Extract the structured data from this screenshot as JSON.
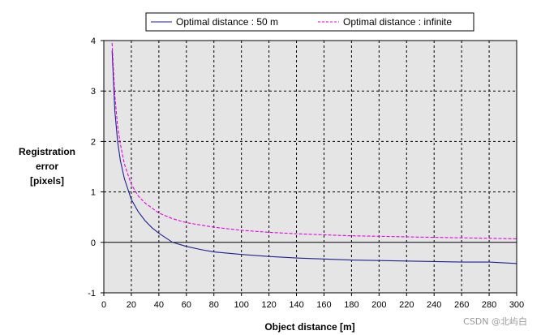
{
  "chart_data": {
    "type": "line",
    "title": "",
    "xlabel": "Object distance [m]",
    "ylabel_lines": [
      "Registration",
      "error",
      "[pixels]"
    ],
    "xlim": [
      0,
      300
    ],
    "ylim": [
      -1,
      4
    ],
    "x_ticks": [
      "0",
      "20",
      "40",
      "60",
      "80",
      "100",
      "120",
      "140",
      "160",
      "180",
      "200",
      "220",
      "240",
      "260",
      "280",
      "300"
    ],
    "y_ticks": [
      "4",
      "3",
      "2",
      "1",
      "0",
      "-1"
    ],
    "grid": true,
    "legend_position": "top-center",
    "series": [
      {
        "name": "Optimal distance : 50 m",
        "style": "solid",
        "color": "#1f1f8f",
        "x": [
          6,
          8,
          10,
          12,
          15,
          20,
          25,
          30,
          35,
          40,
          45,
          50,
          60,
          70,
          80,
          100,
          120,
          140,
          160,
          180,
          200,
          220,
          240,
          260,
          280,
          300
        ],
        "y": [
          3.8,
          2.6,
          2.0,
          1.62,
          1.26,
          0.85,
          0.61,
          0.43,
          0.29,
          0.18,
          0.09,
          0.0,
          -0.08,
          -0.14,
          -0.19,
          -0.24,
          -0.28,
          -0.31,
          -0.33,
          -0.35,
          -0.36,
          -0.37,
          -0.38,
          -0.39,
          -0.39,
          -0.42
        ]
      },
      {
        "name": "Optimal distance : infinite",
        "style": "dashed",
        "color": "#e600e6",
        "x": [
          6,
          8,
          10,
          12,
          15,
          20,
          25,
          30,
          40,
          50,
          60,
          80,
          100,
          120,
          140,
          160,
          180,
          200,
          220,
          240,
          260,
          280,
          300
        ],
        "y": [
          3.95,
          2.9,
          2.3,
          1.95,
          1.55,
          1.15,
          0.92,
          0.78,
          0.58,
          0.47,
          0.39,
          0.3,
          0.24,
          0.2,
          0.17,
          0.15,
          0.13,
          0.12,
          0.11,
          0.1,
          0.09,
          0.08,
          0.07
        ]
      }
    ]
  },
  "watermark": "CSDN @北屿白"
}
